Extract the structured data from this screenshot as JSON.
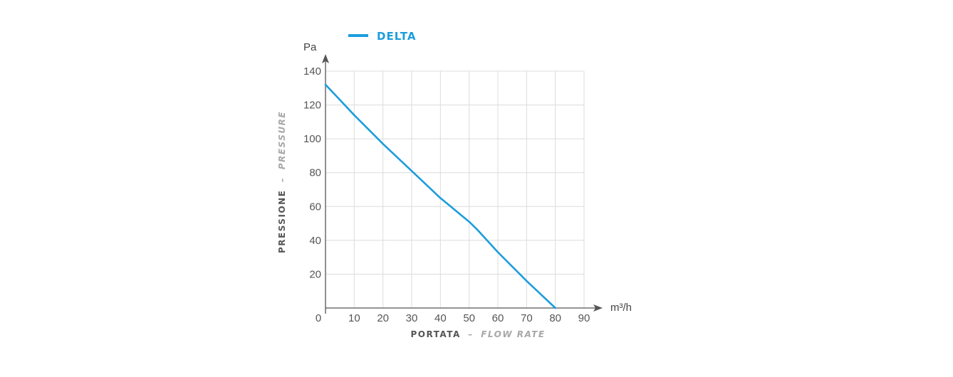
{
  "chart_data": {
    "type": "line",
    "x_unit": "m³/h",
    "y_unit": "Pa",
    "xlabel_main": "PORTATA",
    "xlabel_sub": "FLOW RATE",
    "ylabel_main": "PRESSIONE",
    "ylabel_sub": "PRESSURE",
    "separator": "–",
    "xlim": [
      0,
      90
    ],
    "ylim": [
      0,
      140
    ],
    "x_ticks": [
      0,
      10,
      20,
      30,
      40,
      50,
      60,
      70,
      80,
      90
    ],
    "y_ticks": [
      20,
      40,
      60,
      80,
      100,
      120,
      140
    ],
    "grid": true,
    "legend_position": "top",
    "series": [
      {
        "name": "DELTA",
        "color": "#1b9ddc",
        "x": [
          0,
          5,
          10,
          20,
          30,
          40,
          50,
          53,
          60,
          70,
          80
        ],
        "y": [
          132,
          123,
          114,
          97,
          81,
          65,
          51,
          46,
          33,
          16,
          0
        ]
      }
    ]
  },
  "colors": {
    "grid": "#dcdcdc",
    "axis": "#555555",
    "tick_text": "#555555",
    "title_main": "#555555",
    "title_sub": "#a8a8a8"
  }
}
